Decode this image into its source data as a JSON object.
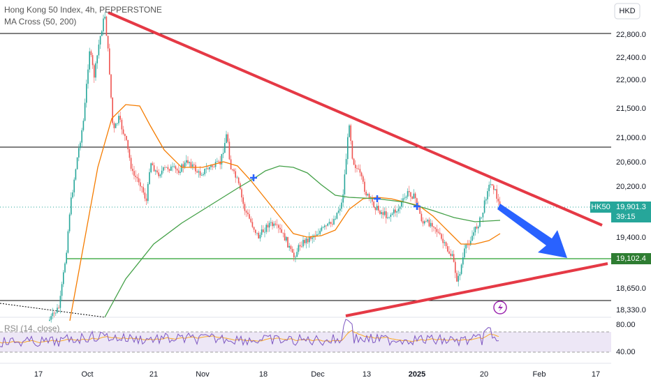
{
  "header": {
    "title": "Hong Kong 50 Index, 4h, PEPPERSTONE",
    "indicator": "MA Cross (50, 200)",
    "rsi": "RSI (14, close)",
    "currency": "HKD"
  },
  "price_axis": [
    "22,800.0",
    "22,400.0",
    "22,000.0",
    "21,500.0",
    "21,000.0",
    "20,600.0",
    "20,200.0",
    "19,400.0",
    "18,650.0",
    "18,330.0"
  ],
  "badges": {
    "symbol": "HK50",
    "price": "19,901.3",
    "countdown": "39:15",
    "level": "19,102.4"
  },
  "rsi_axis": [
    "80.00",
    "40.00"
  ],
  "time_axis": [
    "17",
    "Oct",
    "21",
    "Nov",
    "18",
    "Dec",
    "13",
    "2025",
    "20",
    "Feb",
    "17"
  ]
}
